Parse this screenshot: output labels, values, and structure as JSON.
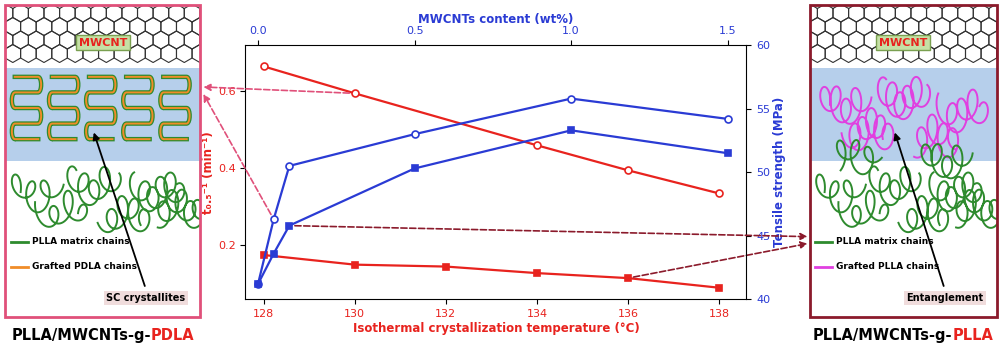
{
  "chart_data": {
    "type": "line",
    "x_label": "Isothermal crystallization temperature (°C)",
    "x2_label": "MWCNTs content (wt%)",
    "y_label": "t₀.₅⁻¹ (min⁻¹)",
    "y2_label": "Tensile strength (MPa)",
    "xlim": [
      127.6,
      138.6
    ],
    "xticks": [
      128,
      130,
      132,
      134,
      136,
      138
    ],
    "x2lim": [
      -0.04,
      1.56
    ],
    "x2ticks": [
      {
        "value": 0,
        "label": "0.0"
      },
      0.5,
      {
        "value": 1,
        "label": "1.0"
      },
      1.5
    ],
    "ylim": [
      0.06,
      0.72
    ],
    "yticks": [
      0.2,
      0.4,
      0.6
    ],
    "y2lim": [
      40,
      60
    ],
    "y2ticks": [
      40,
      45,
      50,
      55,
      60
    ],
    "series": [
      {
        "color": "#e8231e",
        "marker": "circle_open",
        "line_style": "solid",
        "x": [
          128,
          130,
          134,
          136,
          138
        ],
        "values": [
          0.665,
          0.595,
          0.46,
          0.395,
          0.335
        ]
      },
      {
        "color": "#e8231e",
        "marker": "square",
        "line_style": "solid",
        "x": [
          128,
          130,
          132,
          134,
          136,
          138
        ],
        "values": [
          0.175,
          0.15,
          0.145,
          0.128,
          0.115,
          0.09
        ]
      },
      {
        "color": "#2a3bd4",
        "marker": "circle_open",
        "line_style": "solid",
        "axis": "y2",
        "x": [
          0,
          0.05,
          0.1,
          0.5,
          1.0,
          1.5
        ],
        "values": [
          41.2,
          46.3,
          50.5,
          53,
          55.8,
          54.2
        ]
      },
      {
        "color": "#2a3bd4",
        "marker": "square",
        "line_style": "solid",
        "axis": "y2",
        "x": [
          0,
          0.05,
          0.1,
          0.5,
          1.0,
          1.5
        ],
        "values": [
          41.2,
          43.6,
          45.8,
          50.3,
          53.3,
          51.5
        ]
      }
    ]
  },
  "panels": [
    {
      "tube": "MWCNT",
      "callout": "SC crystallites",
      "chains": [
        "PLLA matrix chains",
        "Grafted PDLA chains"
      ],
      "caption": [
        "PLLA/MWCNTs-g-",
        "PDLA"
      ]
    },
    {
      "tube": "MWCNT",
      "callout": "Entanglement",
      "chains": [
        "PLLA matrix chains",
        "Grafted PLLA chains"
      ],
      "caption": [
        "PLLA/MWCNTs-g-",
        "PLLA"
      ]
    }
  ]
}
